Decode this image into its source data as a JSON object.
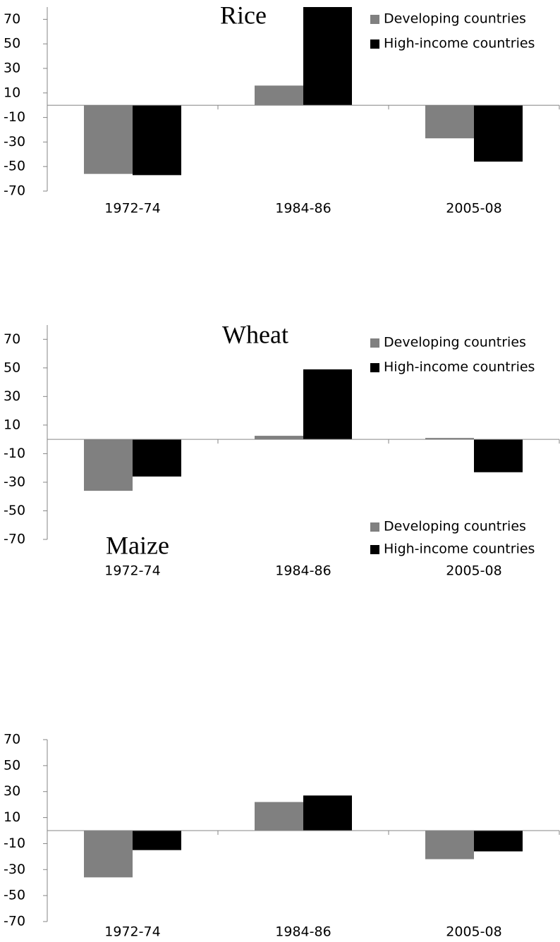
{
  "chart_data": [
    {
      "type": "bar",
      "title": "Rice",
      "categories": [
        "1972-74",
        "1984-86",
        "2005-08"
      ],
      "series": [
        {
          "name": "Developing countries",
          "color": "#808080",
          "values": [
            -56,
            16,
            -27
          ]
        },
        {
          "name": "High-income countries",
          "color": "#000000",
          "values": [
            -57,
            80,
            -46
          ]
        }
      ],
      "ylim": [
        -70,
        80
      ],
      "yticks": [
        -70,
        -50,
        -30,
        -10,
        10,
        30,
        50,
        70
      ]
    },
    {
      "type": "bar",
      "title": "Wheat",
      "categories": [
        "1972-74",
        "1984-86",
        "2005-08"
      ],
      "series": [
        {
          "name": "Developing countries",
          "color": "#808080",
          "values": [
            -36,
            2.5,
            1
          ]
        },
        {
          "name": "High-income countries",
          "color": "#000000",
          "values": [
            -26,
            49,
            -23
          ]
        }
      ],
      "ylim": [
        -70,
        80
      ],
      "yticks": [
        -70,
        -50,
        -30,
        -10,
        10,
        30,
        50,
        70
      ]
    },
    {
      "type": "bar",
      "title": "Maize",
      "categories": [
        "1972-74",
        "1984-86",
        "2005-08"
      ],
      "series": [
        {
          "name": "Developing countries",
          "color": "#808080",
          "values": [
            -36,
            22,
            -22
          ]
        },
        {
          "name": "High-income countries",
          "color": "#000000",
          "values": [
            -15,
            27,
            -16
          ]
        }
      ],
      "ylim": [
        -70,
        70
      ],
      "yticks": [
        -70,
        -50,
        -30,
        -10,
        10,
        30,
        50,
        70
      ]
    }
  ]
}
